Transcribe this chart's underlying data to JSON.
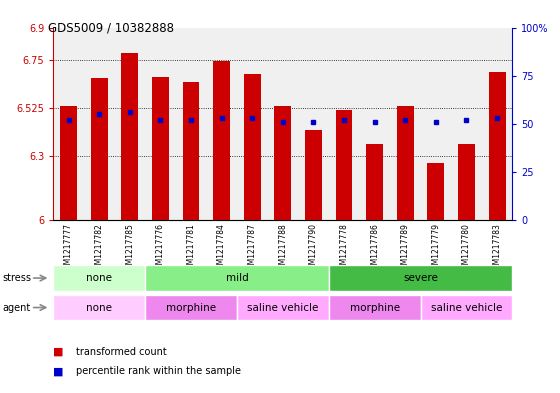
{
  "title": "GDS5009 / 10382888",
  "samples": [
    "GSM1217777",
    "GSM1217782",
    "GSM1217785",
    "GSM1217776",
    "GSM1217781",
    "GSM1217784",
    "GSM1217787",
    "GSM1217788",
    "GSM1217790",
    "GSM1217778",
    "GSM1217786",
    "GSM1217789",
    "GSM1217779",
    "GSM1217780",
    "GSM1217783"
  ],
  "bar_values": [
    6.535,
    6.665,
    6.78,
    6.67,
    6.645,
    6.745,
    6.685,
    6.535,
    6.42,
    6.515,
    6.355,
    6.535,
    6.265,
    6.355,
    6.69
  ],
  "percentile_values": [
    52,
    55,
    56,
    52,
    52,
    53,
    53,
    51,
    51,
    52,
    51,
    52,
    51,
    52,
    53
  ],
  "bar_color": "#cc0000",
  "percentile_color": "#0000cc",
  "ymin": 6.0,
  "ymax": 6.9,
  "yticks": [
    6.0,
    6.3,
    6.525,
    6.75,
    6.9
  ],
  "ytick_labels": [
    "6",
    "6.3",
    "6.525",
    "6.75",
    "6.9"
  ],
  "right_yticks": [
    0,
    25,
    50,
    75,
    100
  ],
  "right_ytick_labels": [
    "0",
    "25",
    "50",
    "75",
    "100%"
  ],
  "stress_groups": [
    {
      "label": "none",
      "start": 0,
      "end": 3,
      "color": "#ccffcc"
    },
    {
      "label": "mild",
      "start": 3,
      "end": 9,
      "color": "#88ee88"
    },
    {
      "label": "severe",
      "start": 9,
      "end": 15,
      "color": "#44bb44"
    }
  ],
  "agent_groups": [
    {
      "label": "none",
      "start": 0,
      "end": 3,
      "color": "#ffccff"
    },
    {
      "label": "morphine",
      "start": 3,
      "end": 6,
      "color": "#ee88ee"
    },
    {
      "label": "saline vehicle",
      "start": 6,
      "end": 9,
      "color": "#ffaaff"
    },
    {
      "label": "morphine",
      "start": 9,
      "end": 12,
      "color": "#ee88ee"
    },
    {
      "label": "saline vehicle",
      "start": 12,
      "end": 15,
      "color": "#ffaaff"
    }
  ],
  "bar_width": 0.55,
  "left_axis_color": "#cc0000",
  "right_axis_color": "#0000cc"
}
